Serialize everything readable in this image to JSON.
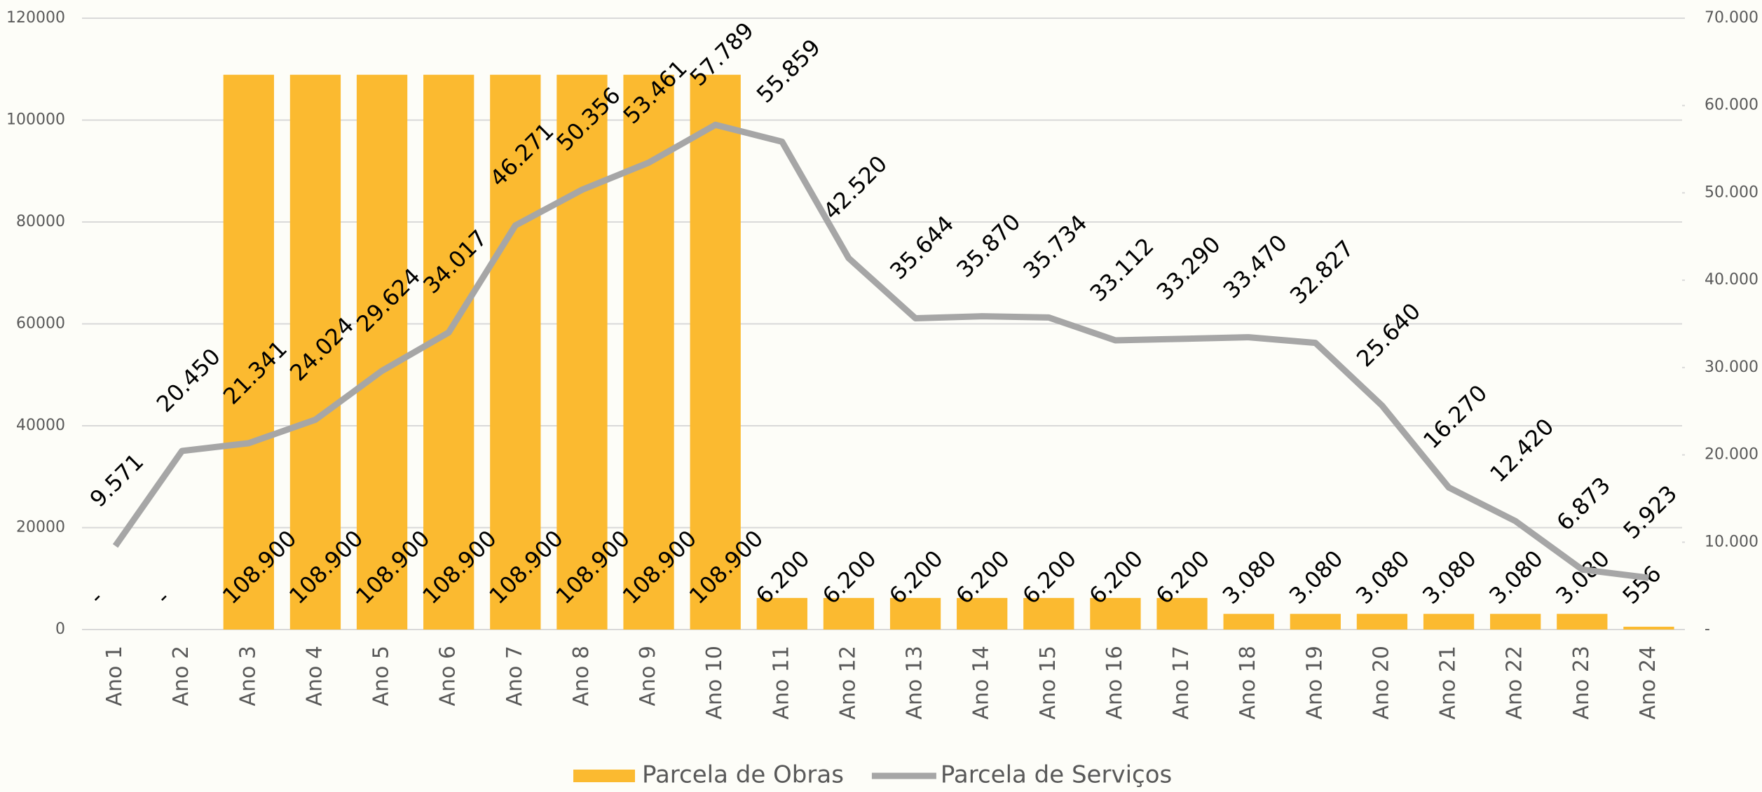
{
  "chart_data": {
    "type": "bar",
    "categories": [
      "Ano 1",
      "Ano 2",
      "Ano 3",
      "Ano 4",
      "Ano 5",
      "Ano 6",
      "Ano 7",
      "Ano 8",
      "Ano 9",
      "Ano 10",
      "Ano 11",
      "Ano 12",
      "Ano 13",
      "Ano 14",
      "Ano 15",
      "Ano 16",
      "Ano 17",
      "Ano 18",
      "Ano 19",
      "Ano 20",
      "Ano 21",
      "Ano 22",
      "Ano 23",
      "Ano 24"
    ],
    "series": [
      {
        "name": "Parcela de Obras",
        "type": "bar",
        "color": "#fbba30",
        "values": [
          0,
          0,
          108900,
          108900,
          108900,
          108900,
          108900,
          108900,
          108900,
          108900,
          6200,
          6200,
          6200,
          6200,
          6200,
          6200,
          6200,
          3080,
          3080,
          3080,
          3080,
          3080,
          3080,
          556
        ],
        "value_labels": [
          "-",
          "-",
          "108.900",
          "108.900",
          "108.900",
          "108.900",
          "108.900",
          "108.900",
          "108.900",
          "108.900",
          "6.200",
          "6.200",
          "6.200",
          "6.200",
          "6.200",
          "6.200",
          "6.200",
          "3.080",
          "3.080",
          "3.080",
          "3.080",
          "3.080",
          "3.080",
          "556"
        ]
      },
      {
        "name": "Parcela de Serviços",
        "type": "line",
        "axis": "y2",
        "color": "#a6a6a6",
        "values": [
          9571,
          20450,
          21341,
          24024,
          29624,
          34017,
          46271,
          50356,
          53461,
          57789,
          55859,
          42520,
          35644,
          35870,
          35734,
          33112,
          33290,
          33470,
          32827,
          25640,
          16270,
          12420,
          6873,
          5923
        ],
        "value_labels": [
          "9.571",
          "20.450",
          "21.341",
          "24.024",
          "29.624",
          "34.017",
          "46.271",
          "50.356",
          "53.461",
          "57.789",
          "55.859",
          "42.520",
          "35.644",
          "35.870",
          "35.734",
          "33.112",
          "33.290",
          "33.470",
          "32.827",
          "25.640",
          "16.270",
          "12.420",
          "6.873",
          "5.923"
        ]
      }
    ],
    "ylim": [
      0,
      120000
    ],
    "yticks": [
      0,
      20000,
      40000,
      60000,
      80000,
      100000,
      120000
    ],
    "y2lim": [
      0,
      70000
    ],
    "y2ticks": [
      {
        "value": 0,
        "label": "-"
      },
      {
        "value": 10000,
        "label": "10.000"
      },
      {
        "value": 20000,
        "label": "20.000"
      },
      {
        "value": 30000,
        "label": "30.000"
      },
      {
        "value": 40000,
        "label": "40.000"
      },
      {
        "value": 50000,
        "label": "50.000"
      },
      {
        "value": 60000,
        "label": "60.000"
      },
      {
        "value": 70000,
        "label": "70.000"
      }
    ],
    "grid": true,
    "legend": "bottom"
  }
}
